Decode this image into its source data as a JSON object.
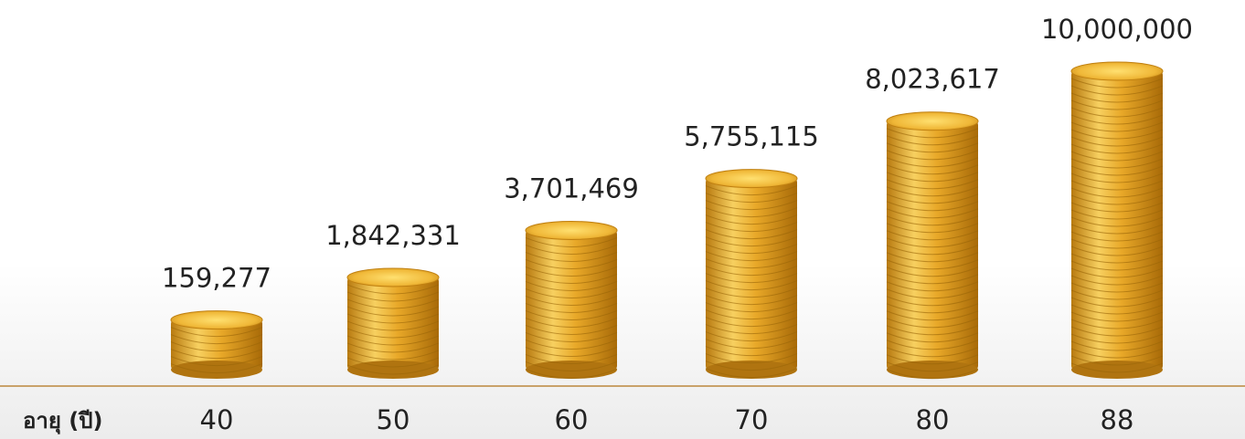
{
  "chart_data": {
    "type": "coin-stack",
    "x_label": "อายุ (ปี)",
    "categories": [
      "40",
      "50",
      "60",
      "70",
      "80",
      "88"
    ],
    "values": [
      159277,
      1842331,
      3701469,
      5755115,
      8023617,
      10000000
    ],
    "value_labels": [
      "159,277",
      "1,842,331",
      "3,701,469",
      "5,755,115",
      "8,023,617",
      "10,000,000"
    ],
    "color": "#e8b030"
  }
}
